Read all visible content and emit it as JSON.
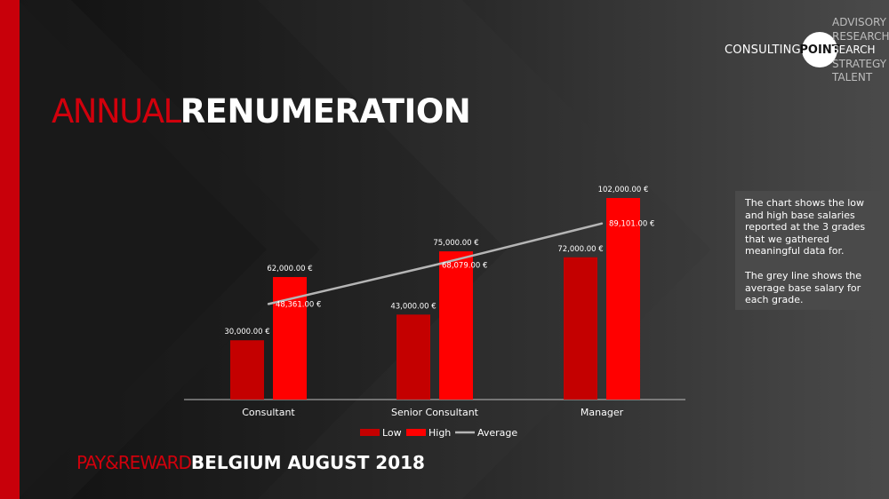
{
  "header": {
    "title_light": "ANNUAL",
    "title_bold": "RENUMERATION"
  },
  "logo": {
    "consulting": "CONSULTING",
    "point": "POINT",
    "services": [
      "ADVISORY",
      "RESEARCH",
      "SEARCH",
      "STRATEGY",
      "TALENT"
    ]
  },
  "note": {
    "paragraph1": "The chart shows the low and high base salaries reported at the 3 grades that we gathered meaningful data for.",
    "paragraph2": "The grey line shows the average base salary for each grade."
  },
  "footer": {
    "light": "PAY&REWARD",
    "bold": "BELGIUM AUGUST 2018"
  },
  "colors": {
    "low": "#c40000",
    "high": "#ff0000",
    "average": "#b5b5b5",
    "brand_red": "#c8000a"
  },
  "chart_data": {
    "type": "bar",
    "categories": [
      "Consultant",
      "Senior Consultant",
      "Manager"
    ],
    "series": [
      {
        "name": "Low",
        "type": "bar",
        "values": [
          30000,
          43000,
          72000
        ],
        "labels": [
          "30,000.00 €",
          "43,000.00 €",
          "72,000.00 €"
        ]
      },
      {
        "name": "High",
        "type": "bar",
        "values": [
          62000,
          75000,
          102000
        ],
        "labels": [
          "62,000.00 €",
          "75,000.00 €",
          "102,000.00 €"
        ]
      },
      {
        "name": "Average",
        "type": "line",
        "values": [
          48361,
          68079,
          89101
        ],
        "labels": [
          "48,361.00 €",
          "68,079.00 €",
          "89,101.00 €"
        ]
      }
    ],
    "ylim": [
      0,
      110000
    ],
    "title": "",
    "xlabel": "",
    "ylabel": "",
    "grid": false,
    "legend": "bottom"
  }
}
